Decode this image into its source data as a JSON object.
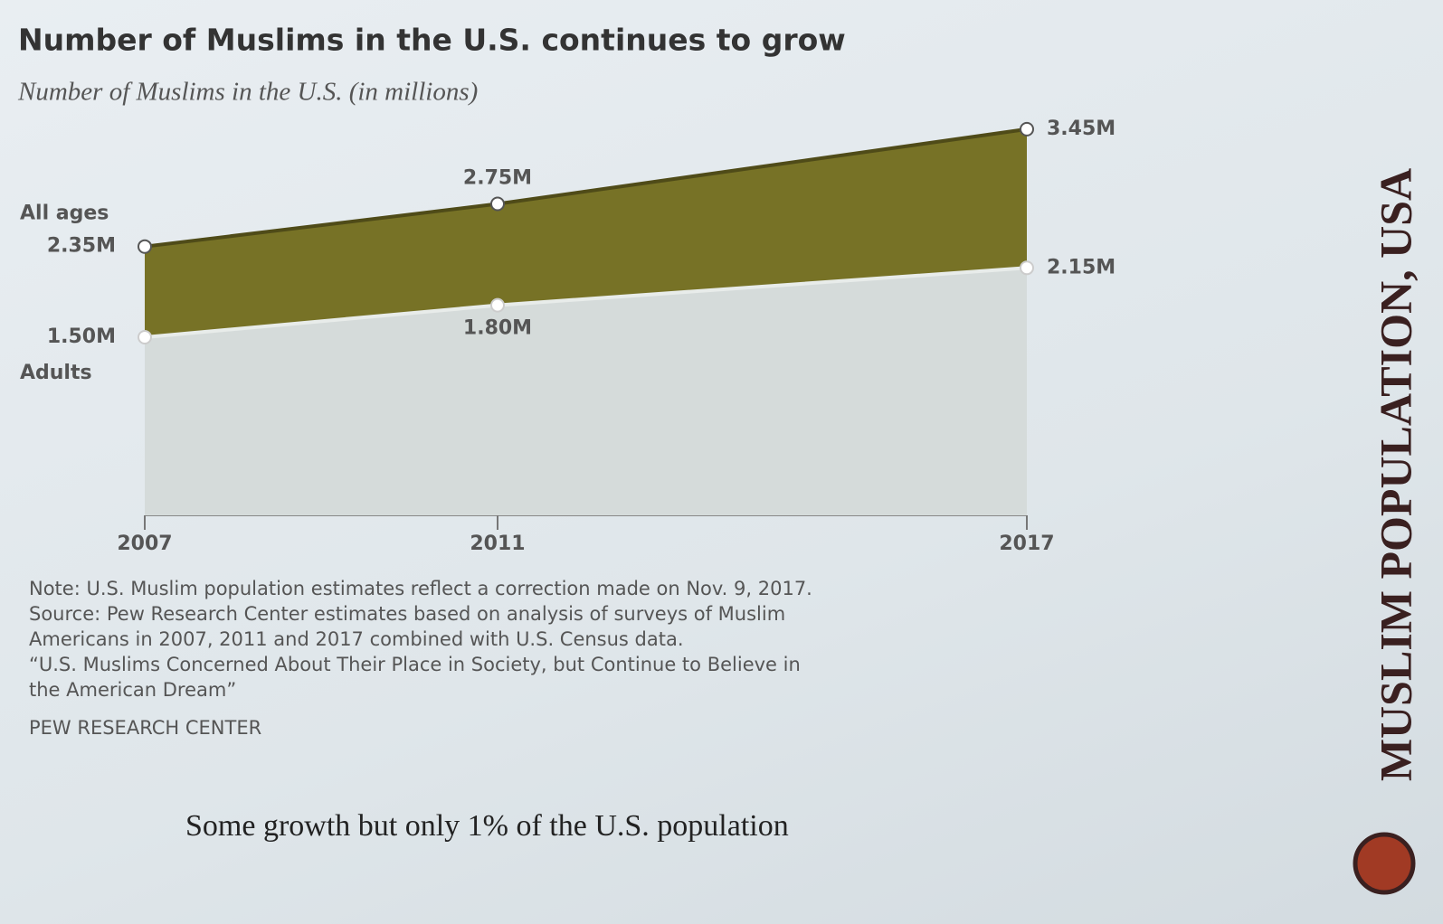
{
  "chart_data": {
    "type": "area",
    "title": "Number of Muslims in the U.S. continues to grow",
    "subtitle": "Number of Muslims in the U.S. (in millions)",
    "x": [
      2007,
      2011,
      2017
    ],
    "xlim": [
      2007,
      2017
    ],
    "xticks": [
      2007,
      2011,
      2017
    ],
    "series": [
      {
        "name": "All ages",
        "color": "#777226",
        "values": [
          2.35,
          2.75,
          3.45
        ],
        "value_labels": [
          "2.35M",
          "2.75M",
          "3.45M"
        ]
      },
      {
        "name": "Adults",
        "color": "#d5dbda",
        "values": [
          1.5,
          1.8,
          2.15
        ],
        "value_labels": [
          "1.50M",
          "1.80M",
          "2.15M"
        ]
      }
    ]
  },
  "notes": [
    "Note: U.S. Muslim population estimates reflect a correction made on Nov. 9, 2017.",
    "Source: Pew Research Center estimates based on analysis of surveys of Muslim",
    "Americans in 2007, 2011 and 2017 combined with U.S. Census data.",
    "“U.S. Muslims Concerned About Their Place in Society, but Continue to Believe in",
    "the American Dream”"
  ],
  "credit": "PEW RESEARCH CENTER",
  "caption": "Some growth but only 1% of the U.S. population",
  "side_title": "MUSLIM POPULATION, USA"
}
